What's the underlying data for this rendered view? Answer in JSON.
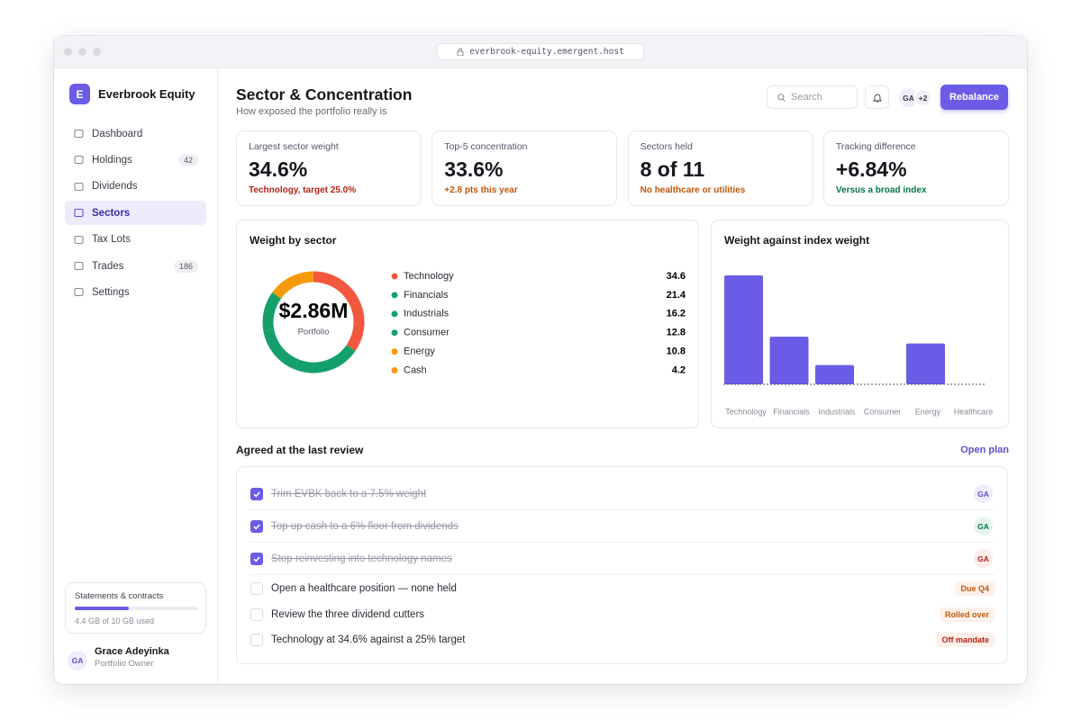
{
  "browser": {
    "url": "everbrook-equity.emergent.host"
  },
  "sidebar": {
    "brand_initial": "E",
    "brand": "Everbrook Equity",
    "nav": [
      {
        "label": "Dashboard"
      },
      {
        "label": "Holdings",
        "badge": "42"
      },
      {
        "label": "Dividends"
      },
      {
        "label": "Sectors",
        "active": true
      },
      {
        "label": "Tax Lots"
      },
      {
        "label": "Trades",
        "badge": "186"
      },
      {
        "label": "Settings"
      }
    ],
    "storage": {
      "title": "Statements & contracts",
      "label": "4.4 GB of 10 GB used",
      "used": 4.4,
      "total": 10
    },
    "user": {
      "initials": "GA",
      "name": "Grace Adeyinka",
      "role": "Portfolio Owner"
    }
  },
  "header": {
    "title": "Sector & Concentration",
    "subtitle": "How exposed the portfolio really is",
    "search": "Search",
    "avatar": "GA",
    "more": "+2",
    "button": "Rebalance"
  },
  "kpis": [
    {
      "label": "Largest sector weight",
      "value": "34.6%",
      "note": "Technology, target 25.0%",
      "color": "#b42318"
    },
    {
      "label": "Top-5 concentration",
      "value": "33.6%",
      "note": "+2.8 pts this year",
      "color": "#c2570c"
    },
    {
      "label": "Sectors held",
      "value": "8 of 11",
      "note": "No healthcare or utilities",
      "color": "#c2570c"
    },
    {
      "label": "Tracking difference",
      "value": "+6.84%",
      "note": "Versus a broad index",
      "color": "#067647"
    }
  ],
  "donut": {
    "type": "pie",
    "title": "Weight by sector",
    "center_value": "$2.86M",
    "center_label": "Portfolio",
    "categories": [
      "Technology",
      "Financials",
      "Industrials",
      "Consumer",
      "Energy",
      "Cash"
    ],
    "values": [
      34.6,
      21.4,
      16.2,
      12.8,
      10.8,
      4.2
    ],
    "colors": [
      "#f2583e",
      "#15a06b",
      "#15a06b",
      "#15a06b",
      "#f59a0b",
      "#f59a0b"
    ]
  },
  "bars": {
    "type": "bar",
    "title": "Weight against index weight",
    "categories": [
      "Technology",
      "Financials",
      "Industrials",
      "Consumer",
      "Energy",
      "Healthcare"
    ],
    "values": [
      9.6,
      4.2,
      1.7,
      0,
      3.6,
      0
    ],
    "ylim": [
      0,
      10
    ],
    "color": "#6b5ce7"
  },
  "review": {
    "title": "Agreed at the last review",
    "link": "Open plan",
    "items": [
      {
        "text": "Trim EVBK back to a 7.5% weight",
        "done": true,
        "avatar": "GA",
        "avatar_color": "#5b4fd0",
        "avatar_bg": "#efedfc"
      },
      {
        "text": "Top up cash to a 6% floor from dividends",
        "done": true,
        "avatar": "GA",
        "avatar_color": "#067647",
        "avatar_bg": "#e7f5ee"
      },
      {
        "text": "Stop reinvesting into technology names",
        "done": true,
        "avatar": "GA",
        "avatar_color": "#b42318",
        "avatar_bg": "#fdecea"
      },
      {
        "text": "Open a healthcare position — none held",
        "done": false,
        "tag": "Due Q4",
        "tag_color": "#c2570c"
      },
      {
        "text": "Review the three dividend cutters",
        "done": false,
        "tag": "Rolled over",
        "tag_color": "#c2570c"
      },
      {
        "text": "Technology at 34.6% against a 25% target",
        "done": false,
        "tag": "Off mandate",
        "tag_color": "#b42318"
      }
    ]
  }
}
